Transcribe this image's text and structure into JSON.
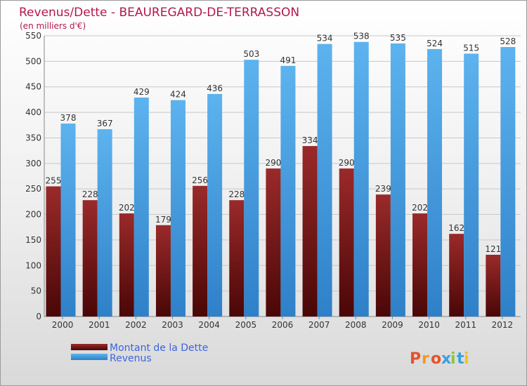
{
  "chart_data": {
    "type": "bar",
    "title": "Revenus/Dette - BEAUREGARD-DE-TERRASSON",
    "subtitle": "(en milliers d'€)",
    "categories": [
      "2000",
      "2001",
      "2002",
      "2003",
      "2004",
      "2005",
      "2006",
      "2007",
      "2008",
      "2009",
      "2010",
      "2011",
      "2012"
    ],
    "series": [
      {
        "name": "Montant de la Dette",
        "color": "#7a1515",
        "values": [
          255,
          228,
          202,
          179,
          256,
          228,
          290,
          334,
          290,
          239,
          202,
          162,
          121
        ]
      },
      {
        "name": "Revenus",
        "color": "#4fa3e3",
        "values": [
          378,
          367,
          429,
          424,
          436,
          503,
          491,
          534,
          538,
          535,
          524,
          515,
          528
        ]
      }
    ],
    "ylim": [
      0,
      550
    ],
    "yticks": [
      0,
      50,
      100,
      150,
      200,
      250,
      300,
      350,
      400,
      450,
      500,
      550
    ],
    "grid": true,
    "legend": "bottom-left"
  },
  "brand": "Proxiti"
}
